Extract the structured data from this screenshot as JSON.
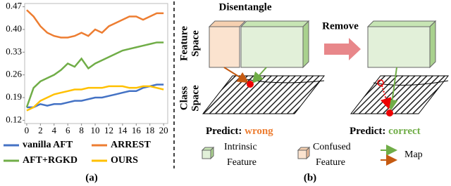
{
  "chart_data": {
    "type": "line",
    "x": [
      0,
      1,
      2,
      3,
      4,
      5,
      6,
      7,
      8,
      9,
      10,
      11,
      12,
      13,
      14,
      15,
      16,
      17,
      18,
      19,
      20
    ],
    "xlim": [
      -0.3,
      20.6
    ],
    "xticks": [
      0,
      2,
      4,
      6,
      8,
      10,
      12,
      14,
      16,
      18,
      20
    ],
    "ylim": [
      0.11,
      0.48
    ],
    "yticks": [
      0.12,
      0.19,
      0.26,
      0.33,
      {
        "value": 0.4,
        "label": "0.40"
      },
      0.47
    ],
    "series": [
      {
        "name": "vanilla AFT",
        "color": "#4472c4",
        "values": [
          0.16,
          0.16,
          0.17,
          0.165,
          0.17,
          0.17,
          0.175,
          0.18,
          0.18,
          0.185,
          0.19,
          0.19,
          0.195,
          0.2,
          0.205,
          0.21,
          0.21,
          0.22,
          0.225,
          0.23,
          0.23
        ]
      },
      {
        "name": "ARREST",
        "color": "#ed7d31",
        "values": [
          0.46,
          0.44,
          0.41,
          0.39,
          0.38,
          0.375,
          0.375,
          0.38,
          0.39,
          0.38,
          0.4,
          0.39,
          0.41,
          0.42,
          0.43,
          0.44,
          0.44,
          0.43,
          0.44,
          0.45,
          0.45
        ]
      },
      {
        "name": "AFT+RGKD",
        "color": "#70ad47",
        "values": [
          0.16,
          0.22,
          0.24,
          0.25,
          0.26,
          0.275,
          0.295,
          0.285,
          0.31,
          0.28,
          0.295,
          0.305,
          0.315,
          0.325,
          0.335,
          0.34,
          0.345,
          0.35,
          0.355,
          0.36,
          0.36
        ]
      },
      {
        "name": "OURS",
        "color": "#ffc000",
        "values": [
          0.15,
          0.16,
          0.18,
          0.19,
          0.2,
          0.205,
          0.21,
          0.215,
          0.215,
          0.22,
          0.22,
          0.22,
          0.225,
          0.225,
          0.225,
          0.22,
          0.22,
          0.225,
          0.225,
          0.22,
          0.215
        ]
      }
    ],
    "caption": "(a)"
  },
  "diagram": {
    "disentangle": "Disentangle",
    "remove": "Remove",
    "feature_space": [
      "Feature",
      "Space"
    ],
    "class_space": [
      "Class",
      "Space"
    ],
    "predict_left": {
      "label": "Predict:",
      "result": "wrong"
    },
    "predict_right": {
      "label": "Predict:",
      "result": "correct"
    },
    "legend": {
      "intrinsic": [
        "Intrinsic",
        "Feature"
      ],
      "confused": [
        "Confused",
        "Feature"
      ],
      "map": "Map"
    },
    "caption": "(b)"
  }
}
